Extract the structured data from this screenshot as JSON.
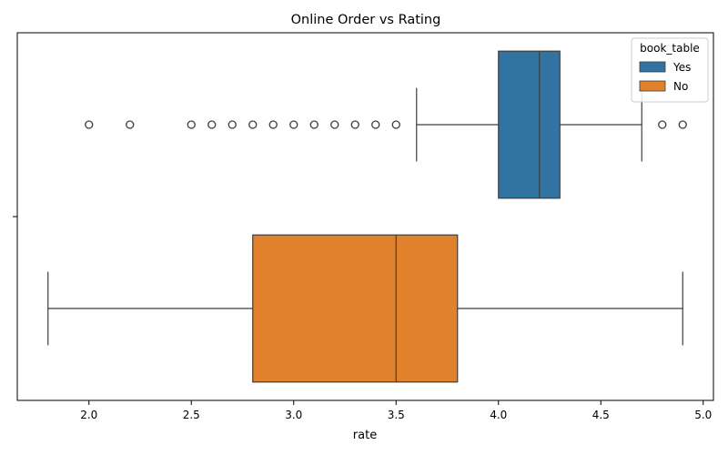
{
  "chart_data": {
    "type": "boxplot",
    "orientation": "horizontal",
    "title": "Online Order vs Rating",
    "xlabel": "rate",
    "ylabel": "",
    "xlim": [
      1.65,
      5.05
    ],
    "x_ticks": [
      2.0,
      2.5,
      3.0,
      3.5,
      4.0,
      4.5,
      5.0
    ],
    "x_tick_labels": [
      "2.0",
      "2.5",
      "3.0",
      "3.5",
      "4.0",
      "4.5",
      "5.0"
    ],
    "grid": false,
    "legend": {
      "title": "book_table",
      "position": "top-right"
    },
    "series": [
      {
        "name": "Yes",
        "color": "#3274a1",
        "whisker_low": 3.6,
        "q1": 4.0,
        "median": 4.2,
        "q3": 4.3,
        "whisker_high": 4.7,
        "outliers": [
          2.0,
          2.2,
          2.5,
          2.6,
          2.7,
          2.8,
          2.9,
          3.0,
          3.1,
          3.2,
          3.3,
          3.4,
          3.5,
          4.8,
          4.9
        ]
      },
      {
        "name": "No",
        "color": "#e1812c",
        "whisker_low": 1.8,
        "q1": 2.8,
        "median": 3.5,
        "q3": 3.8,
        "whisker_high": 4.9,
        "outliers": []
      }
    ]
  }
}
